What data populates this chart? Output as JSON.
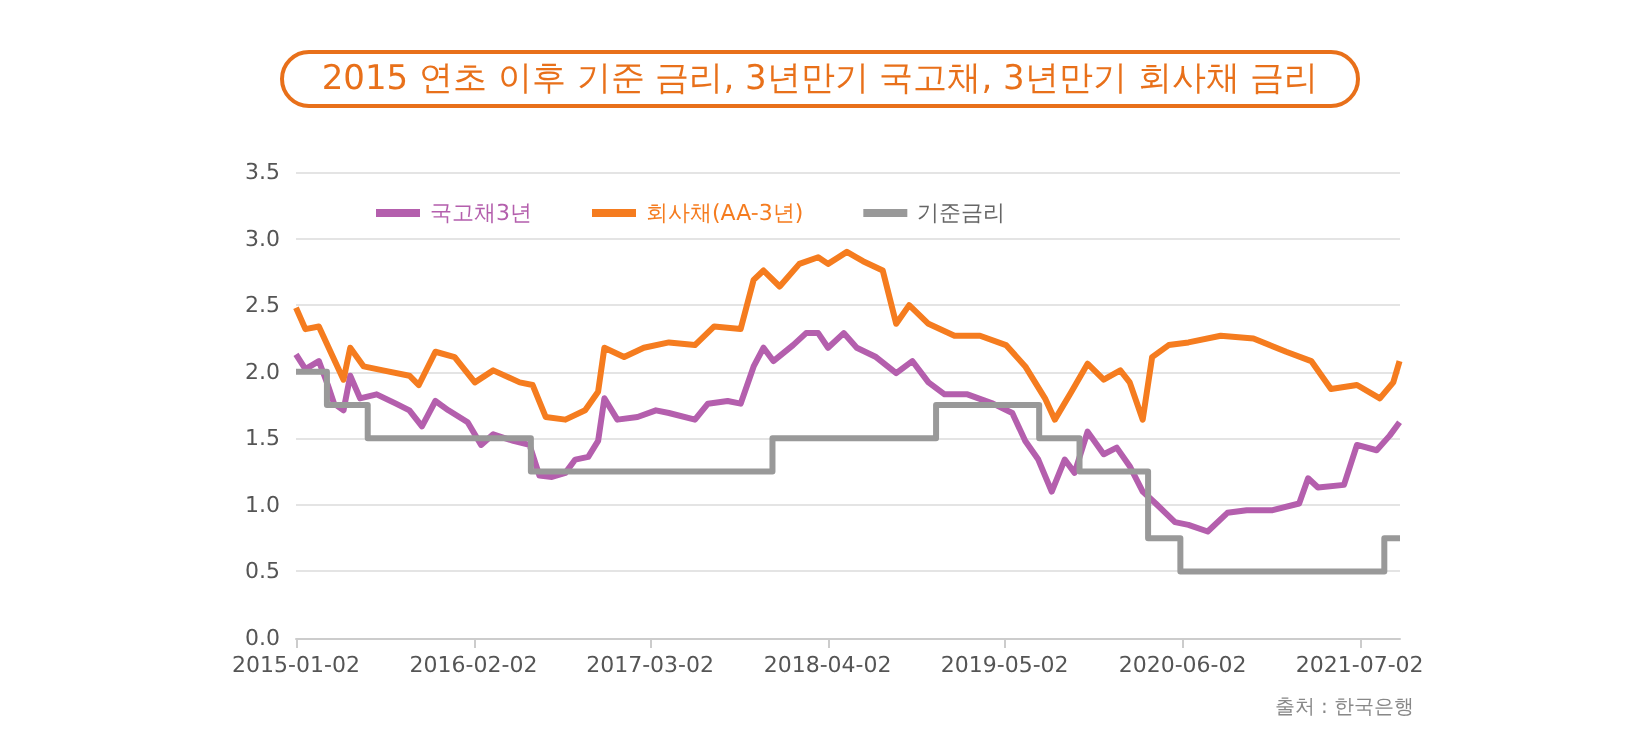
{
  "chart_data": {
    "type": "line",
    "title": "2015 연초 이후 기준 금리, 3년만기 국고채, 3년만기 회사채 금리",
    "annotations": [
      "출처 : 한국은행"
    ],
    "xlim": [
      "2015-01-02",
      "2021-09-30"
    ],
    "xticks": [
      "2015-01-02",
      "2016-02-02",
      "2017-03-02",
      "2018-04-02",
      "2019-05-02",
      "2020-06-02",
      "2021-07-02"
    ],
    "ylim": [
      0,
      3.5
    ],
    "yticks": [
      {
        "value": 0,
        "label": "0.0"
      },
      0.5,
      {
        "value": 1,
        "label": "1.0"
      },
      1.5,
      {
        "value": 2,
        "label": "2.0"
      },
      2.5,
      {
        "value": 3,
        "label": "3.0"
      },
      3.5
    ],
    "grid": "y",
    "legend": "top left",
    "marker": "none",
    "line_style": "solid",
    "series": [
      {
        "name": "국고채3년",
        "color": "#b45fad",
        "x": [
          "2015-01-02",
          "2015-01-23",
          "2015-02-22",
          "2015-03-14",
          "2015-03-28",
          "2015-04-18",
          "2015-05-03",
          "2015-05-25",
          "2015-07-01",
          "2015-08-13",
          "2015-09-12",
          "2015-10-10",
          "2015-11-09",
          "2015-12-08",
          "2016-01-20",
          "2016-02-19",
          "2016-03-17",
          "2016-05-01",
          "2016-06-06",
          "2016-06-28",
          "2016-07-26",
          "2016-08-25",
          "2016-09-16",
          "2016-10-15",
          "2016-11-06",
          "2016-11-20",
          "2016-12-19",
          "2017-02-02",
          "2017-03-15",
          "2017-04-13",
          "2017-06-10",
          "2017-07-09",
          "2017-08-22",
          "2017-09-20",
          "2017-10-19",
          "2017-11-10",
          "2017-12-02",
          "2018-01-15",
          "2018-02-13",
          "2018-03-12",
          "2018-04-03",
          "2018-05-08",
          "2018-06-06",
          "2018-07-19",
          "2018-09-02",
          "2018-10-08",
          "2018-11-13",
          "2018-12-19",
          "2019-02-08",
          "2019-04-06",
          "2019-05-19",
          "2019-06-17",
          "2019-07-16",
          "2019-08-15",
          "2019-09-13",
          "2019-10-05",
          "2019-11-03",
          "2019-12-09",
          "2020-01-07",
          "2020-02-05",
          "2020-03-05",
          "2020-04-03",
          "2020-05-16",
          "2020-06-15",
          "2020-07-28",
          "2020-09-10",
          "2020-10-23",
          "2020-12-20",
          "2021-02-17",
          "2021-03-09",
          "2021-03-31",
          "2021-05-28",
          "2021-06-26",
          "2021-08-09",
          "2021-09-07",
          "2021-09-29"
        ],
        "values": [
          2.13,
          2.02,
          2.08,
          1.9,
          1.76,
          1.71,
          1.97,
          1.8,
          1.83,
          1.76,
          1.71,
          1.59,
          1.78,
          1.71,
          1.62,
          1.45,
          1.53,
          1.48,
          1.45,
          1.22,
          1.21,
          1.24,
          1.34,
          1.36,
          1.48,
          1.8,
          1.64,
          1.66,
          1.71,
          1.69,
          1.64,
          1.76,
          1.78,
          1.76,
          2.04,
          2.18,
          2.08,
          2.2,
          2.29,
          2.29,
          2.18,
          2.29,
          2.18,
          2.11,
          1.99,
          2.08,
          1.92,
          1.83,
          1.83,
          1.76,
          1.69,
          1.48,
          1.34,
          1.1,
          1.34,
          1.24,
          1.55,
          1.38,
          1.43,
          1.29,
          1.1,
          1.01,
          0.87,
          0.85,
          0.8,
          0.94,
          0.96,
          0.96,
          1.01,
          1.2,
          1.13,
          1.15,
          1.45,
          1.41,
          1.52,
          1.62
        ]
      },
      {
        "name": "회사채(AA-3년)",
        "color": "#f57c1f",
        "x": [
          "2015-01-02",
          "2015-01-23",
          "2015-02-22",
          "2015-03-20",
          "2015-04-18",
          "2015-05-03",
          "2015-06-02",
          "2015-07-15",
          "2015-09-12",
          "2015-10-03",
          "2015-11-09",
          "2015-12-22",
          "2016-02-05",
          "2016-03-17",
          "2016-05-15",
          "2016-06-13",
          "2016-07-12",
          "2016-08-25",
          "2016-10-08",
          "2016-11-06",
          "2016-11-20",
          "2017-01-03",
          "2017-02-16",
          "2017-04-13",
          "2017-06-10",
          "2017-07-23",
          "2017-09-20",
          "2017-10-19",
          "2017-11-10",
          "2017-12-16",
          "2018-01-29",
          "2018-03-12",
          "2018-04-03",
          "2018-05-15",
          "2018-06-20",
          "2018-08-03",
          "2018-09-02",
          "2018-10-01",
          "2018-11-13",
          "2019-01-10",
          "2019-03-08",
          "2019-05-05",
          "2019-06-17",
          "2019-07-31",
          "2019-08-22",
          "2019-09-28",
          "2019-11-03",
          "2019-12-09",
          "2020-01-15",
          "2020-02-05",
          "2020-03-05",
          "2020-03-26",
          "2020-05-02",
          "2020-06-15",
          "2020-08-26",
          "2020-11-07",
          "2021-01-19",
          "2021-03-16",
          "2021-04-29",
          "2021-06-26",
          "2021-08-16",
          "2021-09-15",
          "2021-09-29"
        ],
        "values": [
          2.48,
          2.32,
          2.34,
          2.15,
          1.94,
          2.18,
          2.04,
          2.01,
          1.97,
          1.9,
          2.15,
          2.11,
          1.92,
          2.01,
          1.92,
          1.9,
          1.66,
          1.64,
          1.71,
          1.85,
          2.18,
          2.11,
          2.18,
          2.22,
          2.2,
          2.34,
          2.32,
          2.69,
          2.76,
          2.64,
          2.81,
          2.86,
          2.81,
          2.9,
          2.83,
          2.76,
          2.36,
          2.5,
          2.36,
          2.27,
          2.27,
          2.2,
          2.04,
          1.8,
          1.64,
          1.85,
          2.06,
          1.94,
          2.01,
          1.92,
          1.64,
          2.11,
          2.2,
          2.22,
          2.27,
          2.25,
          2.15,
          2.08,
          1.87,
          1.9,
          1.8,
          1.92,
          2.08
        ]
      },
      {
        "name": "기준금리",
        "type": "step",
        "color": "#999999",
        "x": [
          "2015-01-02",
          "2015-03-12",
          "2015-06-11",
          "2016-06-09",
          "2017-11-30",
          "2018-11-30",
          "2019-07-18",
          "2019-10-16",
          "2020-03-17",
          "2020-05-28",
          "2021-08-26",
          "2021-09-30"
        ],
        "values": [
          2.0,
          1.75,
          1.5,
          1.25,
          1.5,
          1.75,
          1.5,
          1.25,
          0.75,
          0.5,
          0.75,
          0.75
        ]
      }
    ]
  }
}
